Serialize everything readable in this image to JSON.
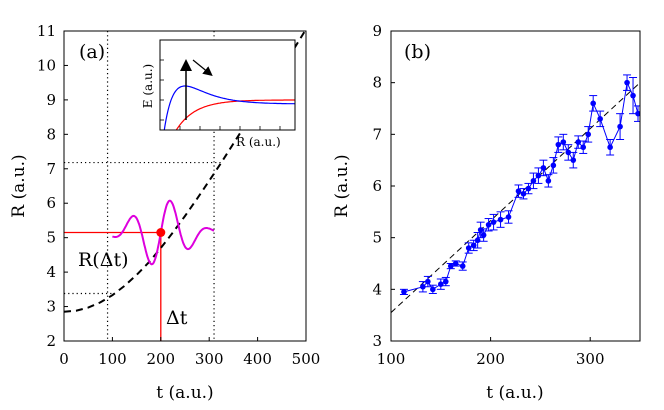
{
  "chart_data": [
    {
      "panel": "(a)",
      "type": "line",
      "xlabel": "t (a.u.)",
      "ylabel": "R (a.u.)",
      "xlim": [
        0,
        500
      ],
      "ylim": [
        2,
        11
      ],
      "xticks": [
        "0",
        "100",
        "200",
        "300",
        "400",
        "500"
      ],
      "yticks": [
        "2",
        "3",
        "4",
        "5",
        "6",
        "7",
        "8",
        "9",
        "10",
        "11"
      ],
      "series": [
        {
          "name": "R(t) trajectory",
          "style": "dashed",
          "color": "#000000",
          "x": [
            0,
            25,
            50,
            75,
            100,
            125,
            150,
            175,
            200,
            225,
            250,
            275,
            300,
            325,
            350,
            375,
            400,
            425,
            450,
            475,
            500
          ],
          "y": [
            2.85,
            2.88,
            2.97,
            3.12,
            3.33,
            3.6,
            3.92,
            4.28,
            4.7,
            5.15,
            5.63,
            6.13,
            6.65,
            7.18,
            7.73,
            8.28,
            8.83,
            9.38,
            9.93,
            10.48,
            11.05
          ]
        },
        {
          "name": "probe wavepacket",
          "style": "solid",
          "color": "#dd00dd",
          "center_t": 200,
          "baseline_R": 5.15,
          "amplitude": 1.0,
          "period_t": 80,
          "x_range": [
            100,
            310
          ]
        }
      ],
      "markers": [
        {
          "name": "R(Δt)",
          "x": 200,
          "y": 5.15,
          "color": "#ff0000"
        }
      ],
      "reference_lines": {
        "vertical_dotted_t": [
          90,
          310
        ],
        "horizontal_dotted_R": [
          3.38,
          7.18
        ],
        "red_vertical_t": 200,
        "red_horizontal_R": 5.15
      },
      "annotations": [
        "R(Δt)",
        "Δt"
      ],
      "inset": {
        "xlabel": "R (a.u.)",
        "ylabel": "E (a.u.)",
        "curves": [
          {
            "name": "repulsive state",
            "color": "#ff0000"
          },
          {
            "name": "bound state",
            "color": "#0000ff"
          }
        ]
      }
    },
    {
      "panel": "(b)",
      "type": "scatter",
      "xlabel": "t (a.u.)",
      "ylabel": "R (a.u.)",
      "xlim": [
        100,
        350
      ],
      "ylim": [
        3,
        9
      ],
      "xticks": [
        "100",
        "200",
        "300"
      ],
      "yticks": [
        "3",
        "4",
        "5",
        "6",
        "7",
        "8",
        "9"
      ],
      "fit_line": {
        "style": "dashed",
        "color": "#000000",
        "x": [
          100,
          350
        ],
        "y": [
          3.55,
          8.0
        ]
      },
      "series": [
        {
          "name": "measured R",
          "color": "#0000ff",
          "x": [
            113,
            132,
            137,
            142,
            150,
            155,
            160,
            165,
            172,
            178,
            183,
            187,
            190,
            193,
            198,
            203,
            210,
            218,
            228,
            233,
            238,
            243,
            248,
            253,
            258,
            263,
            268,
            273,
            278,
            283,
            288,
            293,
            298,
            303,
            310,
            320,
            330,
            337,
            343,
            348
          ],
          "y": [
            3.95,
            4.05,
            4.15,
            4.0,
            4.1,
            4.15,
            4.45,
            4.5,
            4.45,
            4.8,
            4.85,
            4.95,
            5.15,
            5.05,
            5.25,
            5.3,
            5.35,
            5.4,
            5.9,
            5.85,
            5.95,
            6.1,
            6.2,
            6.35,
            6.1,
            6.4,
            6.8,
            6.85,
            6.65,
            6.5,
            6.85,
            6.75,
            7.0,
            7.6,
            7.3,
            6.75,
            7.15,
            8.0,
            7.75,
            7.4
          ],
          "err": [
            0.05,
            0.1,
            0.1,
            0.08,
            0.1,
            0.08,
            0.05,
            0.05,
            0.08,
            0.1,
            0.1,
            0.15,
            0.15,
            0.12,
            0.12,
            0.15,
            0.15,
            0.12,
            0.12,
            0.1,
            0.1,
            0.15,
            0.15,
            0.15,
            0.12,
            0.15,
            0.15,
            0.15,
            0.15,
            0.15,
            0.12,
            0.12,
            0.15,
            0.15,
            0.15,
            0.15,
            0.25,
            0.15,
            0.35,
            0.15
          ]
        }
      ]
    }
  ]
}
